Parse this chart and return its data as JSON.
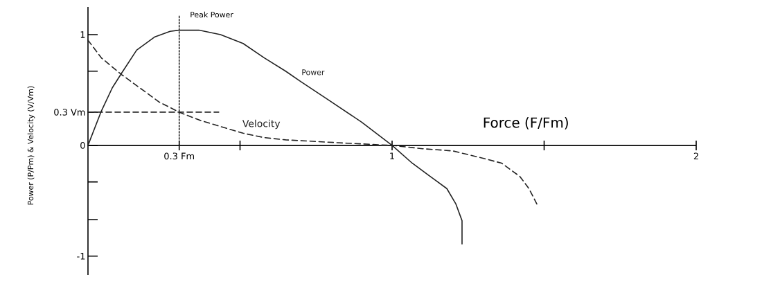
{
  "chart_data": {
    "type": "line",
    "xlabel": "Force (F/Fm)",
    "ylabel": "Power (P/Pm) & Velocity (V/Vm)",
    "xlim": [
      0,
      2
    ],
    "ylim": [
      -1.17,
      1.25
    ],
    "xticks": [
      {
        "value": 0.3,
        "label": "0.3 Fm"
      },
      {
        "value": 0.5,
        "label": null
      },
      {
        "value": 1,
        "label": "1"
      },
      {
        "value": 1.5,
        "label": null
      },
      {
        "value": 2,
        "label": "2"
      }
    ],
    "yticks": [
      {
        "value": -1,
        "label": "-1"
      },
      {
        "value": -0.67,
        "label": null
      },
      {
        "value": -0.33,
        "label": null
      },
      {
        "value": 0,
        "label": "0"
      },
      {
        "value": 0.3,
        "label": "0.3 Vm"
      },
      {
        "value": 0.67,
        "label": null
      },
      {
        "value": 1,
        "label": "1"
      }
    ],
    "series": [
      {
        "name": "Power",
        "color": "#222222",
        "line_style": "solid",
        "x": [
          0,
          0.044,
          0.08,
          0.11,
          0.16,
          0.22,
          0.27,
          0.3,
          0.365,
          0.436,
          0.51,
          0.58,
          0.65,
          0.7,
          0.78,
          0.9,
          1.0,
          1.066,
          1.14,
          1.18,
          1.21,
          1.23,
          1.23
        ],
        "values": [
          0,
          0.31,
          0.52,
          0.65,
          0.86,
          0.98,
          1.03,
          1.04,
          1.04,
          1.0,
          0.92,
          0.79,
          0.67,
          0.575,
          0.43,
          0.21,
          0,
          -0.16,
          -0.31,
          -0.39,
          -0.53,
          -0.68,
          -0.89
        ]
      },
      {
        "name": "Velocity",
        "color": "#222222",
        "line_style": "dashed",
        "x": [
          0,
          0.044,
          0.11,
          0.18,
          0.235,
          0.3,
          0.365,
          0.436,
          0.51,
          0.58,
          0.65,
          0.85,
          1.0,
          1.1,
          1.2,
          1.29,
          1.36,
          1.42,
          1.45,
          1.48
        ],
        "values": [
          0.95,
          0.79,
          0.64,
          0.5,
          0.39,
          0.3,
          0.23,
          0.17,
          0.11,
          0.07,
          0.05,
          0.02,
          0,
          -0.03,
          -0.05,
          -0.11,
          -0.16,
          -0.28,
          -0.39,
          -0.55
        ]
      },
      {
        "color": "#222222",
        "line_style": "dotted",
        "x": [
          0.3,
          0.3
        ],
        "values": [
          0,
          1.17
        ]
      },
      {
        "color": "#222222",
        "line_style": "dashed",
        "x": [
          0,
          0.43
        ],
        "values": [
          0.3,
          0.3
        ]
      }
    ],
    "annotations": [
      {
        "text": "Peak Power",
        "x": 0.3,
        "y": 1.17
      }
    ]
  }
}
